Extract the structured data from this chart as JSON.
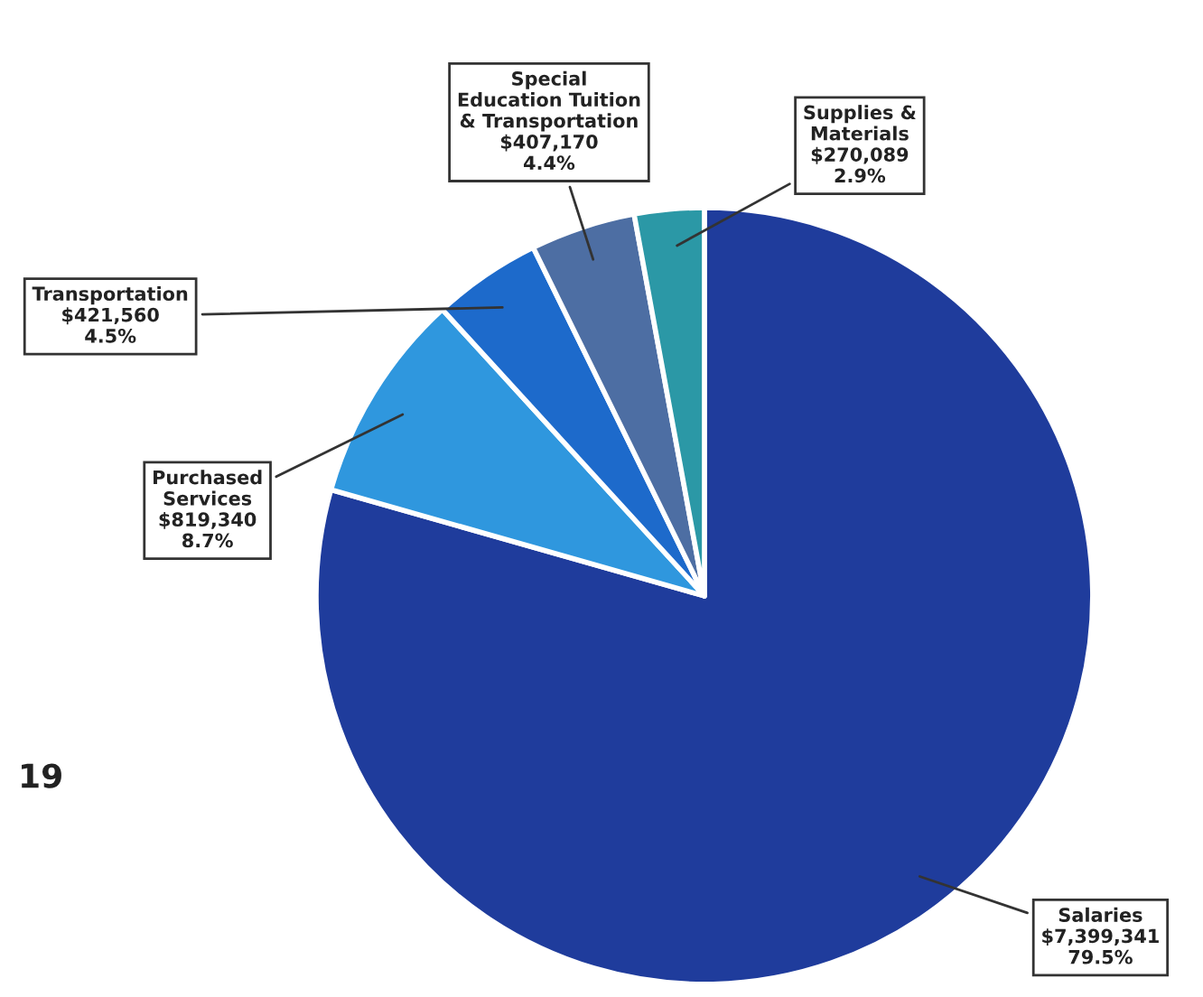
{
  "chart_data": {
    "type": "pie",
    "categories": [
      "Salaries",
      "Purchased\nServices",
      "Transportation",
      "Special\nEducation Tuition\n& Transportation",
      "Supplies &\nMaterials"
    ],
    "values": [
      7399341,
      819340,
      421560,
      407170,
      270089
    ],
    "value_labels": [
      "$7,399,341\n79.5%",
      "$819,340\n8.7%",
      "$421,560\n4.5%",
      "$407,170\n4.4%",
      "$270,089\n2.9%"
    ],
    "colors": [
      "#1f3c9c",
      "#2f97de",
      "#1d6acb",
      "#4d6ea3",
      "#2b98a6"
    ],
    "annotations": [
      "19"
    ]
  }
}
